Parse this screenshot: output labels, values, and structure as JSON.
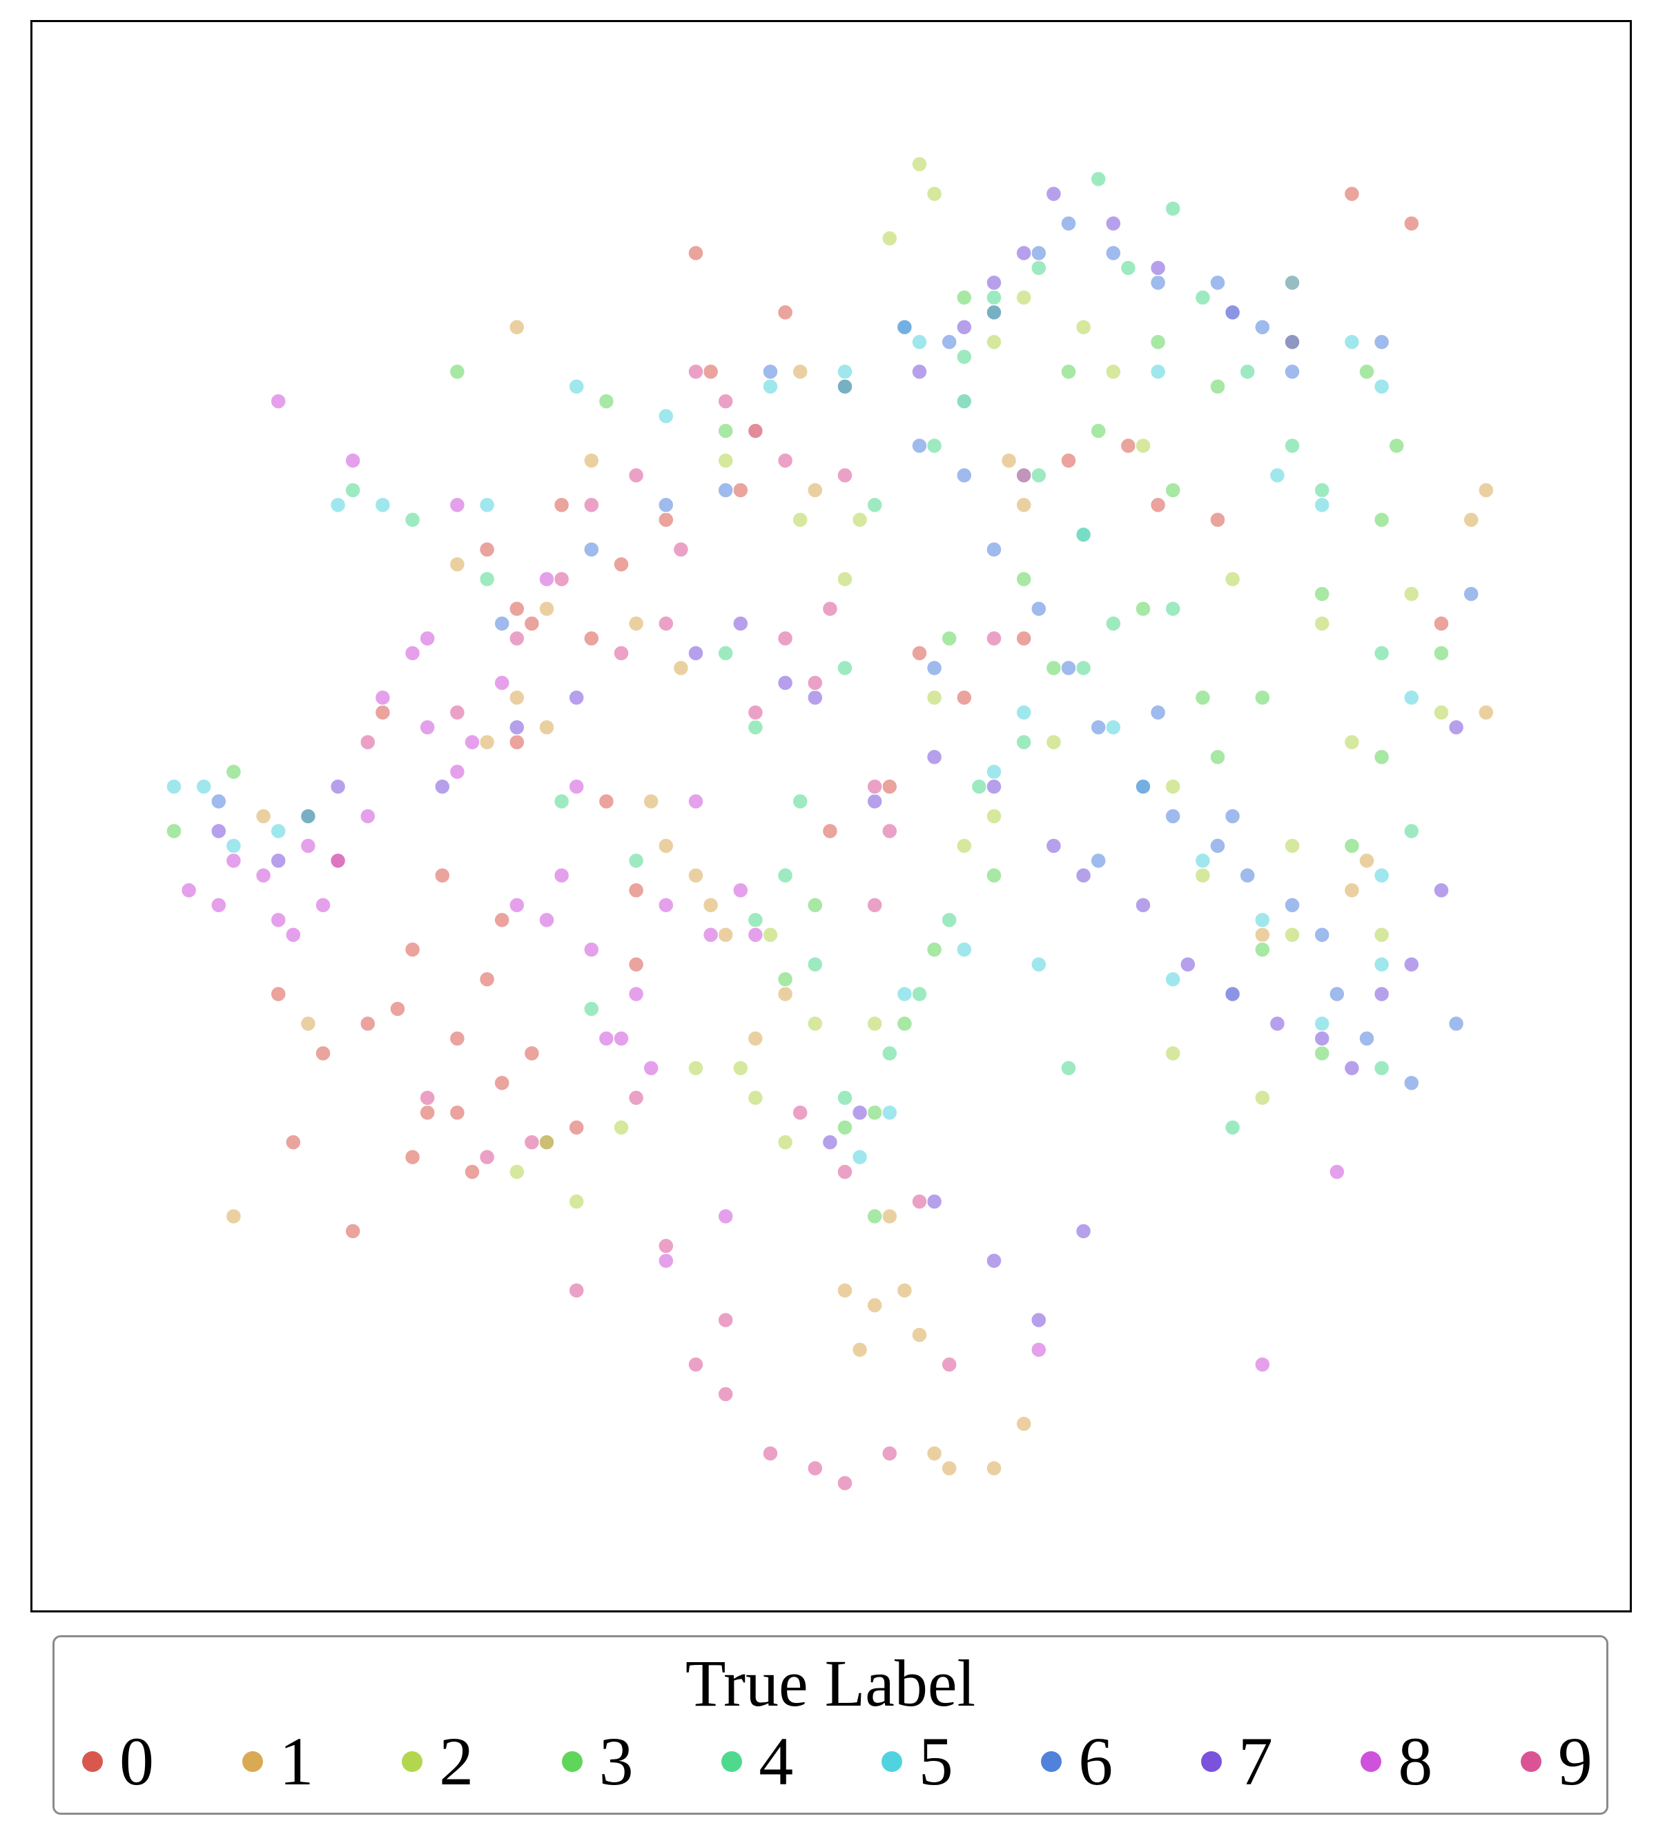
{
  "chart_data": {
    "type": "scatter",
    "title": "",
    "xlabel": "",
    "ylabel": "",
    "axes_ticks": "none",
    "grid": false,
    "legend": {
      "title": "True Label",
      "placement": "bottom",
      "entries": [
        "0",
        "1",
        "2",
        "3",
        "4",
        "5",
        "6",
        "7",
        "8",
        "9"
      ]
    },
    "xlim": [
      0,
      100
    ],
    "ylim": [
      0,
      100
    ],
    "marker_alpha": 0.55,
    "colors": [
      "#d9584d",
      "#d9a953",
      "#b3d64f",
      "#5fd65a",
      "#4fd98c",
      "#50d3df",
      "#5082dc",
      "#7a52db",
      "#cf52dc",
      "#da5495"
    ],
    "series": [
      {
        "name": "0",
        "x": [
          25,
          17,
          13,
          20,
          22,
          27,
          30,
          32,
          24,
          18,
          21,
          15,
          29,
          26,
          23,
          34,
          28,
          19,
          33,
          35,
          38,
          31,
          43,
          41,
          46,
          40,
          26,
          28,
          29,
          36,
          36,
          62,
          65,
          69,
          75,
          71,
          80,
          84,
          88,
          90,
          58,
          49,
          55,
          53,
          21,
          24,
          27,
          16,
          12
        ],
        "y": [
          26,
          22,
          28,
          37,
          30,
          32,
          28,
          29,
          30,
          36,
          41,
          34,
          34,
          39,
          46,
          51,
          55,
          57,
          62,
          67,
          70,
          71,
          72,
          80,
          84,
          88,
          68,
          64,
          63,
          45,
          40,
          62,
          74,
          75,
          70,
          71,
          86,
          92,
          90,
          63,
          58,
          49,
          61,
          52,
          27,
          35,
          43,
          47,
          38
        ]
      },
      {
        "name": "1",
        "x": [
          28,
          30,
          26,
          38,
          40,
          42,
          39,
          41,
          44,
          36,
          37,
          50,
          52,
          51,
          55,
          56,
          57,
          60,
          62,
          54,
          53,
          48,
          47,
          33,
          24,
          14,
          11,
          9,
          92,
          93,
          84,
          85,
          78,
          61,
          62,
          46,
          44,
          30,
          28,
          93
        ],
        "y": [
          58,
          56,
          55,
          48,
          46,
          42,
          60,
          44,
          35,
          63,
          51,
          18,
          17,
          14,
          15,
          7,
          6,
          6,
          9,
          18,
          23,
          72,
          80,
          74,
          67,
          36,
          50,
          23,
          70,
          72,
          45,
          47,
          42,
          74,
          71,
          38,
          76,
          64,
          83,
          57
        ]
      },
      {
        "name": "2",
        "x": [
          30,
          28,
          32,
          35,
          44,
          46,
          42,
          47,
          50,
          58,
          60,
          62,
          55,
          53,
          56,
          66,
          68,
          70,
          64,
          60,
          58,
          74,
          72,
          80,
          84,
          82,
          76,
          88,
          90,
          86,
          80,
          78,
          72,
          51,
          52,
          56,
          45,
          40,
          48,
          43
        ],
        "y": [
          28,
          26,
          24,
          29,
          31,
          28,
          74,
          70,
          66,
          78,
          82,
          85,
          94,
          89,
          92,
          83,
          80,
          75,
          55,
          50,
          48,
          46,
          52,
          48,
          55,
          63,
          66,
          65,
          57,
          42,
          42,
          31,
          34,
          70,
          36,
          58,
          42,
          33,
          36,
          33
        ]
      },
      {
        "name": "3",
        "x": [
          5,
          9,
          14,
          24,
          34,
          42,
          50,
          58,
          60,
          65,
          67,
          71,
          75,
          80,
          85,
          87,
          86,
          90,
          82,
          78,
          75,
          70,
          72,
          64,
          60,
          56,
          54,
          52,
          48,
          46,
          50,
          52,
          57,
          62,
          66,
          74,
          78,
          82,
          84,
          86
        ],
        "y": [
          49,
          53,
          50,
          80,
          78,
          76,
          79,
          85,
          84,
          80,
          76,
          82,
          79,
          82,
          80,
          75,
          70,
          61,
          65,
          58,
          54,
          64,
          72,
          60,
          46,
          41,
          36,
          30,
          44,
          39,
          29,
          23,
          62,
          66,
          69,
          58,
          41,
          34,
          48,
          54
        ]
      },
      {
        "name": "4",
        "x": [
          17,
          21,
          26,
          31,
          36,
          33,
          44,
          47,
          50,
          52,
          56,
          58,
          60,
          63,
          67,
          69,
          72,
          74,
          77,
          80,
          68,
          66,
          62,
          59,
          57,
          55,
          53,
          50,
          48,
          46,
          44,
          42,
          63,
          72,
          82,
          86,
          88,
          86,
          76,
          65
        ],
        "y": [
          72,
          70,
          66,
          51,
          47,
          37,
          43,
          51,
          60,
          71,
          75,
          81,
          85,
          87,
          93,
          87,
          91,
          85,
          80,
          75,
          63,
          60,
          55,
          52,
          43,
          38,
          34,
          31,
          40,
          46,
          56,
          61,
          73,
          64,
          72,
          61,
          49,
          33,
          29,
          33
        ]
      },
      {
        "name": "5",
        "x": [
          5,
          7,
          9,
          12,
          16,
          19,
          26,
          32,
          38,
          45,
          50,
          54,
          55,
          58,
          62,
          66,
          71,
          76,
          80,
          84,
          86,
          79,
          82,
          88,
          60,
          62,
          68,
          70,
          74,
          78,
          86,
          82,
          86,
          76,
          72,
          63,
          58,
          54,
          53,
          51
        ],
        "y": [
          52,
          52,
          48,
          49,
          71,
          71,
          71,
          79,
          77,
          79,
          80,
          83,
          82,
          78,
          73,
          69,
          80,
          84,
          86,
          82,
          79,
          73,
          71,
          58,
          53,
          57,
          56,
          52,
          47,
          43,
          40,
          36,
          46,
          38,
          39,
          40,
          41,
          38,
          30,
          27
        ]
      },
      {
        "name": "6",
        "x": [
          8,
          14,
          27,
          33,
          38,
          42,
          45,
          50,
          55,
          58,
          60,
          63,
          65,
          67,
          70,
          72,
          75,
          77,
          80,
          82,
          83,
          85,
          88,
          91,
          92,
          86,
          80,
          78,
          75,
          71,
          68,
          65,
          63,
          60,
          57,
          54,
          56,
          71,
          76,
          67
        ],
        "y": [
          51,
          50,
          63,
          68,
          71,
          72,
          80,
          79,
          75,
          73,
          68,
          64,
          60,
          56,
          52,
          50,
          48,
          46,
          44,
          42,
          38,
          35,
          32,
          36,
          65,
          82,
          80,
          83,
          86,
          86,
          88,
          90,
          88,
          84,
          82,
          83,
          60,
          57,
          50,
          47
        ]
      },
      {
        "name": "7",
        "x": [
          8,
          12,
          16,
          23,
          28,
          32,
          40,
          43,
          46,
          48,
          52,
          56,
          60,
          64,
          66,
          70,
          73,
          76,
          79,
          82,
          84,
          86,
          88,
          90,
          91,
          80,
          76,
          71,
          68,
          64,
          62,
          60,
          58,
          55,
          49,
          51,
          56,
          60,
          63,
          66
        ],
        "y": [
          49,
          47,
          52,
          52,
          56,
          58,
          61,
          63,
          59,
          58,
          51,
          54,
          52,
          48,
          46,
          44,
          40,
          38,
          36,
          35,
          33,
          38,
          40,
          45,
          56,
          82,
          84,
          87,
          90,
          92,
          88,
          86,
          83,
          80,
          28,
          30,
          24,
          20,
          16,
          22
        ]
      },
      {
        "name": "8",
        "x": [
          6,
          8,
          9,
          11,
          12,
          13,
          14,
          15,
          16,
          18,
          19,
          21,
          22,
          24,
          25,
          27,
          28,
          30,
          31,
          32,
          33,
          34,
          35,
          36,
          37,
          38,
          40,
          41,
          43,
          44,
          30,
          24,
          22,
          17,
          12,
          38,
          42,
          63,
          78,
          83
        ],
        "y": [
          45,
          44,
          47,
          46,
          43,
          42,
          48,
          44,
          47,
          50,
          58,
          61,
          56,
          53,
          55,
          59,
          44,
          43,
          46,
          52,
          41,
          35,
          35,
          38,
          33,
          44,
          51,
          42,
          45,
          42,
          66,
          71,
          62,
          74,
          78,
          20,
          23,
          14,
          13,
          26
        ]
      },
      {
        "name": "9",
        "x": [
          18,
          24,
          28,
          31,
          35,
          38,
          33,
          36,
          39,
          40,
          42,
          44,
          46,
          50,
          44,
          46,
          48,
          49,
          52,
          53,
          52,
          47,
          50,
          36,
          29,
          26,
          22,
          32,
          42,
          38,
          40,
          42,
          45,
          48,
          50,
          53,
          57,
          55,
          60,
          62
        ],
        "y": [
          55,
          57,
          62,
          66,
          61,
          63,
          71,
          73,
          68,
          80,
          78,
          76,
          74,
          73,
          57,
          62,
          59,
          64,
          52,
          49,
          44,
          30,
          26,
          31,
          28,
          27,
          31,
          18,
          16,
          21,
          13,
          11,
          7,
          6,
          5,
          7,
          13,
          24,
          62,
          73
        ]
      }
    ]
  }
}
